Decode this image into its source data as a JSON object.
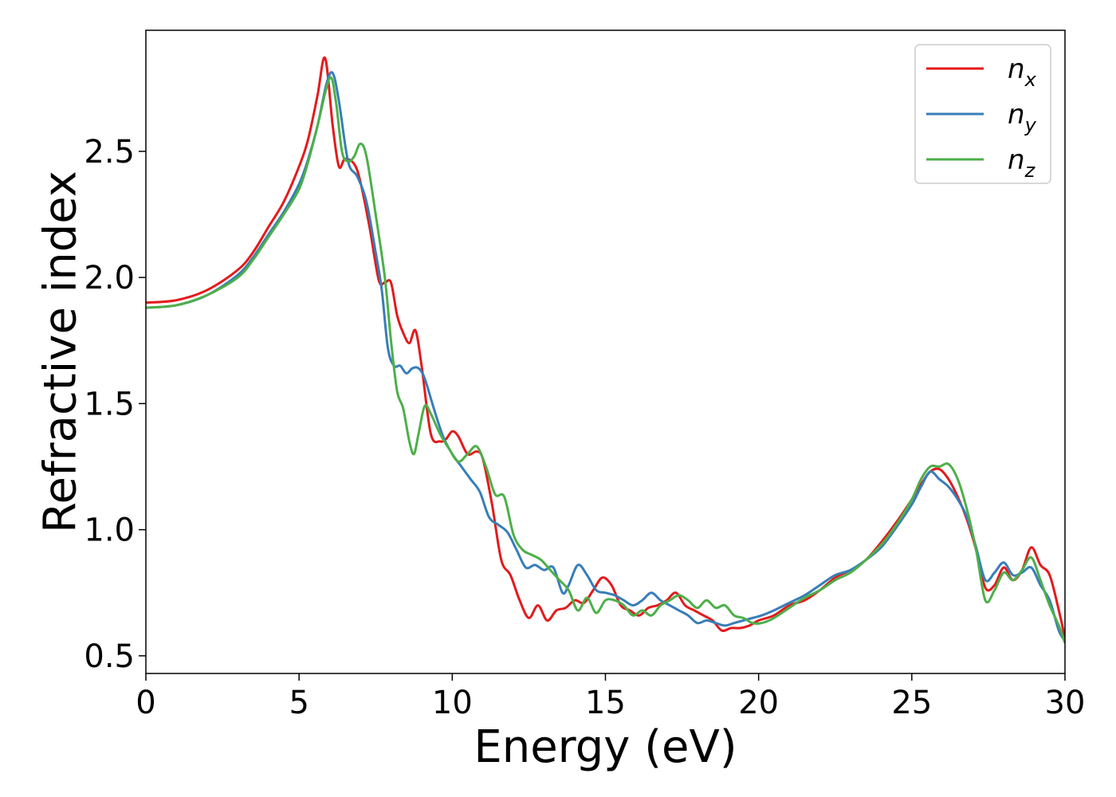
{
  "chart_data": {
    "type": "line",
    "title": "",
    "xlabel": "Energy (eV)",
    "ylabel": "Refractive index",
    "xlim": [
      0,
      30
    ],
    "ylim": [
      0.43,
      2.98
    ],
    "xticks": [
      0,
      5,
      10,
      15,
      20,
      25,
      30
    ],
    "yticks": [
      0.5,
      1.0,
      1.5,
      2.0,
      2.5
    ],
    "xtick_labels": [
      "0",
      "5",
      "10",
      "15",
      "20",
      "25",
      "30"
    ],
    "ytick_labels": [
      "0.5",
      "1.0",
      "1.5",
      "2.0",
      "2.5"
    ],
    "grid": false,
    "legend_position": "top-right",
    "series": [
      {
        "name": "n",
        "subscript": "x",
        "color": "#e41a1c",
        "x": [
          0,
          1,
          2,
          3,
          3.5,
          4,
          4.5,
          5,
          5.3,
          5.6,
          5.85,
          6.1,
          6.3,
          6.5,
          6.8,
          7.0,
          7.3,
          7.6,
          7.8,
          8.0,
          8.2,
          8.4,
          8.6,
          8.8,
          9.0,
          9.3,
          9.6,
          9.8,
          10.0,
          10.2,
          10.5,
          10.8,
          11.0,
          11.3,
          11.6,
          11.9,
          12.2,
          12.5,
          12.8,
          13.1,
          13.4,
          13.7,
          14.0,
          14.3,
          14.6,
          14.9,
          15.2,
          15.5,
          15.8,
          16.1,
          16.4,
          16.7,
          17.0,
          17.3,
          17.6,
          17.9,
          18.2,
          18.5,
          18.8,
          19.1,
          19.4,
          19.7,
          20.0,
          20.5,
          21.0,
          21.5,
          22.0,
          22.5,
          23.0,
          23.5,
          24.0,
          24.5,
          25.0,
          25.3,
          25.6,
          25.9,
          26.2,
          26.5,
          26.8,
          27.1,
          27.4,
          27.7,
          28.0,
          28.3,
          28.6,
          28.9,
          29.2,
          29.5,
          29.8,
          30.0
        ],
        "y": [
          1.9,
          1.91,
          1.95,
          2.03,
          2.1,
          2.2,
          2.3,
          2.44,
          2.55,
          2.72,
          2.87,
          2.6,
          2.44,
          2.47,
          2.45,
          2.38,
          2.2,
          1.99,
          1.98,
          1.98,
          1.85,
          1.78,
          1.74,
          1.79,
          1.65,
          1.38,
          1.35,
          1.36,
          1.39,
          1.37,
          1.3,
          1.31,
          1.28,
          1.1,
          0.88,
          0.82,
          0.72,
          0.65,
          0.7,
          0.64,
          0.68,
          0.69,
          0.72,
          0.71,
          0.76,
          0.81,
          0.78,
          0.7,
          0.68,
          0.66,
          0.69,
          0.7,
          0.72,
          0.75,
          0.7,
          0.68,
          0.66,
          0.64,
          0.6,
          0.61,
          0.61,
          0.62,
          0.64,
          0.66,
          0.7,
          0.72,
          0.76,
          0.81,
          0.84,
          0.88,
          0.95,
          1.03,
          1.12,
          1.18,
          1.23,
          1.24,
          1.2,
          1.13,
          1.04,
          0.92,
          0.77,
          0.78,
          0.85,
          0.8,
          0.84,
          0.93,
          0.86,
          0.82,
          0.68,
          0.57
        ]
      },
      {
        "name": "n",
        "subscript": "y",
        "color": "#377eb8",
        "x": [
          0,
          1,
          2,
          3,
          3.5,
          4,
          4.5,
          5,
          5.3,
          5.6,
          5.9,
          6.1,
          6.3,
          6.6,
          6.9,
          7.2,
          7.5,
          7.7,
          7.9,
          8.1,
          8.3,
          8.5,
          8.7,
          8.9,
          9.1,
          9.4,
          9.7,
          10.0,
          10.3,
          10.6,
          10.9,
          11.2,
          11.5,
          11.8,
          12.1,
          12.4,
          12.7,
          13.0,
          13.3,
          13.6,
          13.8,
          14.1,
          14.4,
          14.7,
          15.0,
          15.3,
          15.6,
          15.9,
          16.2,
          16.5,
          16.8,
          17.1,
          17.4,
          17.7,
          18.0,
          18.3,
          18.6,
          18.9,
          19.2,
          19.5,
          19.8,
          20.1,
          20.5,
          21.0,
          21.5,
          22.0,
          22.5,
          23.0,
          23.5,
          24.0,
          24.5,
          25.0,
          25.3,
          25.6,
          25.9,
          26.2,
          26.5,
          26.8,
          27.1,
          27.4,
          27.7,
          28.0,
          28.3,
          28.6,
          28.9,
          29.2,
          29.5,
          29.8,
          30.0
        ],
        "y": [
          1.88,
          1.89,
          1.93,
          2.01,
          2.08,
          2.17,
          2.26,
          2.37,
          2.47,
          2.6,
          2.77,
          2.81,
          2.7,
          2.46,
          2.4,
          2.3,
          2.1,
          1.95,
          1.72,
          1.65,
          1.65,
          1.62,
          1.64,
          1.64,
          1.6,
          1.48,
          1.37,
          1.3,
          1.25,
          1.2,
          1.15,
          1.05,
          1.02,
          0.99,
          0.92,
          0.85,
          0.86,
          0.84,
          0.85,
          0.75,
          0.78,
          0.86,
          0.82,
          0.76,
          0.75,
          0.74,
          0.72,
          0.7,
          0.72,
          0.75,
          0.72,
          0.7,
          0.68,
          0.66,
          0.63,
          0.64,
          0.63,
          0.62,
          0.63,
          0.64,
          0.65,
          0.66,
          0.68,
          0.71,
          0.74,
          0.78,
          0.82,
          0.84,
          0.88,
          0.93,
          1.01,
          1.1,
          1.17,
          1.23,
          1.2,
          1.17,
          1.12,
          1.05,
          0.93,
          0.8,
          0.83,
          0.87,
          0.82,
          0.83,
          0.85,
          0.78,
          0.72,
          0.6,
          0.56
        ]
      },
      {
        "name": "n",
        "subscript": "z",
        "color": "#4daf4a",
        "x": [
          0,
          1,
          2,
          3,
          3.5,
          4,
          4.5,
          5,
          5.3,
          5.6,
          6.0,
          6.2,
          6.4,
          6.6,
          6.8,
          7.0,
          7.2,
          7.5,
          7.8,
          8.0,
          8.2,
          8.4,
          8.6,
          8.75,
          8.9,
          9.1,
          9.3,
          9.6,
          9.9,
          10.2,
          10.5,
          10.8,
          11.1,
          11.4,
          11.7,
          12.0,
          12.3,
          12.6,
          12.9,
          13.2,
          13.5,
          13.8,
          14.1,
          14.4,
          14.7,
          15.0,
          15.3,
          15.6,
          15.9,
          16.2,
          16.5,
          16.8,
          17.1,
          17.4,
          17.7,
          18.0,
          18.3,
          18.6,
          18.9,
          19.2,
          19.5,
          19.8,
          20.1,
          20.5,
          21.0,
          21.5,
          22.0,
          22.5,
          23.0,
          23.5,
          24.0,
          24.5,
          25.0,
          25.3,
          25.6,
          25.9,
          26.2,
          26.5,
          26.8,
          27.1,
          27.4,
          27.7,
          28.0,
          28.3,
          28.6,
          28.9,
          29.2,
          29.5,
          29.8,
          30.0
        ],
        "y": [
          1.88,
          1.89,
          1.93,
          2.0,
          2.07,
          2.16,
          2.25,
          2.35,
          2.46,
          2.6,
          2.79,
          2.7,
          2.5,
          2.46,
          2.48,
          2.53,
          2.48,
          2.25,
          2.0,
          1.75,
          1.55,
          1.48,
          1.35,
          1.3,
          1.38,
          1.49,
          1.46,
          1.38,
          1.32,
          1.27,
          1.3,
          1.33,
          1.25,
          1.14,
          1.13,
          0.98,
          0.92,
          0.9,
          0.88,
          0.84,
          0.8,
          0.76,
          0.68,
          0.73,
          0.67,
          0.72,
          0.72,
          0.7,
          0.66,
          0.68,
          0.66,
          0.7,
          0.72,
          0.74,
          0.72,
          0.69,
          0.72,
          0.69,
          0.7,
          0.66,
          0.65,
          0.63,
          0.63,
          0.65,
          0.69,
          0.73,
          0.76,
          0.8,
          0.83,
          0.88,
          0.94,
          1.02,
          1.12,
          1.2,
          1.25,
          1.25,
          1.26,
          1.2,
          1.08,
          0.92,
          0.72,
          0.76,
          0.83,
          0.8,
          0.84,
          0.89,
          0.8,
          0.7,
          0.62,
          0.55
        ]
      }
    ]
  }
}
